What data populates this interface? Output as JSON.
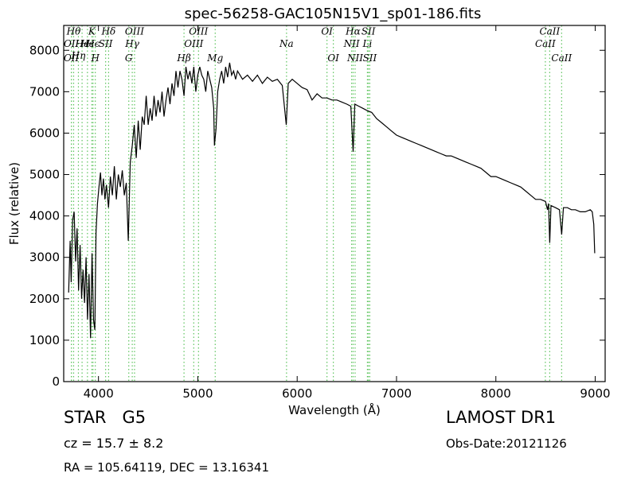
{
  "chart_data": {
    "type": "line",
    "title": "spec-56258-GAC105N15V1_sp01-186.fits",
    "xlabel": "Wavelength (Å)",
    "ylabel": "Flux (relative)",
    "xlim": [
      3650,
      9100
    ],
    "ylim": [
      0,
      8600
    ],
    "xticks": [
      4000,
      5000,
      6000,
      7000,
      8000,
      9000
    ],
    "yticks": [
      0,
      1000,
      2000,
      3000,
      4000,
      5000,
      6000,
      7000,
      8000
    ],
    "grid": false,
    "line_color": "#000000",
    "marker_color": "#5ec45e",
    "spectrum": [
      [
        3700,
        2150
      ],
      [
        3715,
        3400
      ],
      [
        3725,
        2400
      ],
      [
        3740,
        3900
      ],
      [
        3755,
        4100
      ],
      [
        3770,
        2900
      ],
      [
        3785,
        3700
      ],
      [
        3800,
        2200
      ],
      [
        3815,
        3300
      ],
      [
        3830,
        2000
      ],
      [
        3845,
        2700
      ],
      [
        3860,
        1900
      ],
      [
        3875,
        3000
      ],
      [
        3890,
        1500
      ],
      [
        3905,
        2600
      ],
      [
        3920,
        1050
      ],
      [
        3935,
        3100
      ],
      [
        3950,
        1500
      ],
      [
        3963,
        1250
      ],
      [
        3975,
        3600
      ],
      [
        3990,
        4300
      ],
      [
        4005,
        4700
      ],
      [
        4020,
        5050
      ],
      [
        4035,
        4500
      ],
      [
        4050,
        4900
      ],
      [
        4065,
        4400
      ],
      [
        4080,
        4750
      ],
      [
        4101,
        4200
      ],
      [
        4120,
        4950
      ],
      [
        4140,
        4500
      ],
      [
        4160,
        5200
      ],
      [
        4180,
        4400
      ],
      [
        4200,
        5000
      ],
      [
        4220,
        4700
      ],
      [
        4240,
        5100
      ],
      [
        4260,
        4500
      ],
      [
        4280,
        4800
      ],
      [
        4300,
        3400
      ],
      [
        4320,
        5300
      ],
      [
        4340,
        5700
      ],
      [
        4360,
        6200
      ],
      [
        4380,
        5400
      ],
      [
        4400,
        6300
      ],
      [
        4420,
        5600
      ],
      [
        4440,
        6400
      ],
      [
        4460,
        6200
      ],
      [
        4480,
        6900
      ],
      [
        4500,
        6200
      ],
      [
        4520,
        6600
      ],
      [
        4540,
        6300
      ],
      [
        4560,
        6900
      ],
      [
        4580,
        6400
      ],
      [
        4600,
        6800
      ],
      [
        4620,
        6500
      ],
      [
        4640,
        7000
      ],
      [
        4660,
        6400
      ],
      [
        4680,
        6800
      ],
      [
        4700,
        7100
      ],
      [
        4720,
        6700
      ],
      [
        4740,
        7200
      ],
      [
        4760,
        6900
      ],
      [
        4780,
        7500
      ],
      [
        4800,
        7100
      ],
      [
        4820,
        7500
      ],
      [
        4840,
        7300
      ],
      [
        4861,
        6900
      ],
      [
        4880,
        7600
      ],
      [
        4900,
        7300
      ],
      [
        4920,
        7500
      ],
      [
        4940,
        7200
      ],
      [
        4960,
        7600
      ],
      [
        4980,
        7000
      ],
      [
        5000,
        7400
      ],
      [
        5020,
        7600
      ],
      [
        5040,
        7400
      ],
      [
        5060,
        7300
      ],
      [
        5080,
        7000
      ],
      [
        5100,
        7500
      ],
      [
        5120,
        7300
      ],
      [
        5140,
        7100
      ],
      [
        5160,
        6600
      ],
      [
        5167,
        5700
      ],
      [
        5183,
        6100
      ],
      [
        5200,
        7000
      ],
      [
        5220,
        7300
      ],
      [
        5240,
        7500
      ],
      [
        5260,
        7200
      ],
      [
        5280,
        7600
      ],
      [
        5300,
        7350
      ],
      [
        5320,
        7700
      ],
      [
        5340,
        7400
      ],
      [
        5360,
        7500
      ],
      [
        5380,
        7300
      ],
      [
        5400,
        7500
      ],
      [
        5450,
        7300
      ],
      [
        5500,
        7400
      ],
      [
        5550,
        7250
      ],
      [
        5600,
        7400
      ],
      [
        5650,
        7200
      ],
      [
        5700,
        7350
      ],
      [
        5750,
        7250
      ],
      [
        5800,
        7300
      ],
      [
        5850,
        7150
      ],
      [
        5890,
        6200
      ],
      [
        5910,
        7200
      ],
      [
        5950,
        7300
      ],
      [
        6000,
        7200
      ],
      [
        6050,
        7100
      ],
      [
        6100,
        7050
      ],
      [
        6150,
        6800
      ],
      [
        6200,
        6950
      ],
      [
        6250,
        6850
      ],
      [
        6300,
        6850
      ],
      [
        6350,
        6800
      ],
      [
        6400,
        6800
      ],
      [
        6450,
        6750
      ],
      [
        6500,
        6700
      ],
      [
        6540,
        6650
      ],
      [
        6563,
        5550
      ],
      [
        6580,
        6700
      ],
      [
        6620,
        6650
      ],
      [
        6660,
        6600
      ],
      [
        6700,
        6550
      ],
      [
        6750,
        6500
      ],
      [
        6800,
        6350
      ],
      [
        6850,
        6250
      ],
      [
        6900,
        6150
      ],
      [
        6950,
        6050
      ],
      [
        7000,
        5950
      ],
      [
        7050,
        5900
      ],
      [
        7100,
        5850
      ],
      [
        7150,
        5800
      ],
      [
        7200,
        5750
      ],
      [
        7250,
        5700
      ],
      [
        7300,
        5650
      ],
      [
        7350,
        5600
      ],
      [
        7400,
        5550
      ],
      [
        7450,
        5500
      ],
      [
        7500,
        5450
      ],
      [
        7550,
        5450
      ],
      [
        7600,
        5400
      ],
      [
        7650,
        5350
      ],
      [
        7700,
        5300
      ],
      [
        7750,
        5250
      ],
      [
        7800,
        5200
      ],
      [
        7850,
        5150
      ],
      [
        7900,
        5050
      ],
      [
        7950,
        4950
      ],
      [
        8000,
        4950
      ],
      [
        8050,
        4900
      ],
      [
        8100,
        4850
      ],
      [
        8150,
        4800
      ],
      [
        8200,
        4750
      ],
      [
        8250,
        4700
      ],
      [
        8300,
        4600
      ],
      [
        8350,
        4500
      ],
      [
        8400,
        4400
      ],
      [
        8450,
        4400
      ],
      [
        8500,
        4350
      ],
      [
        8520,
        4150
      ],
      [
        8530,
        4300
      ],
      [
        8542,
        3350
      ],
      [
        8555,
        4250
      ],
      [
        8600,
        4200
      ],
      [
        8640,
        4150
      ],
      [
        8662,
        3550
      ],
      [
        8680,
        4200
      ],
      [
        8720,
        4200
      ],
      [
        8760,
        4150
      ],
      [
        8800,
        4150
      ],
      [
        8850,
        4100
      ],
      [
        8900,
        4100
      ],
      [
        8950,
        4150
      ],
      [
        8970,
        4100
      ],
      [
        8985,
        3800
      ],
      [
        8995,
        3100
      ]
    ],
    "markers": [
      {
        "x": 3727,
        "label": "OII",
        "y": 8180
      },
      {
        "x": 3727,
        "label": "OII",
        "y": 7830
      },
      {
        "x": 3750,
        "label": "Hθ",
        "y": 8480
      },
      {
        "x": 3798,
        "label": "Hη",
        "y": 7890
      },
      {
        "x": 3835,
        "label": "Hϵ",
        "y": 8180
      },
      {
        "x": 3889,
        "label": "Hϵ",
        "y": 8180
      },
      {
        "x": 3933,
        "label": "K",
        "y": 8480
      },
      {
        "x": 3945,
        "label": "Hϵ",
        "y": 8180
      },
      {
        "x": 3968,
        "label": "H",
        "y": 7830
      },
      {
        "x": 4072,
        "label": "SII",
        "y": 8180
      },
      {
        "x": 4102,
        "label": "Hδ",
        "y": 8480
      },
      {
        "x": 4305,
        "label": "G",
        "y": 7830
      },
      {
        "x": 4340,
        "label": "Hγ",
        "y": 8180
      },
      {
        "x": 4363,
        "label": "OIII",
        "y": 8480
      },
      {
        "x": 4861,
        "label": "Hβ",
        "y": 7830
      },
      {
        "x": 4959,
        "label": "OIII",
        "y": 8180
      },
      {
        "x": 5007,
        "label": "OIII",
        "y": 8480
      },
      {
        "x": 5175,
        "label": "Mg",
        "y": 7830
      },
      {
        "x": 5893,
        "label": "Na",
        "y": 8180
      },
      {
        "x": 6300,
        "label": "OI",
        "y": 8480
      },
      {
        "x": 6364,
        "label": "OI",
        "y": 7830
      },
      {
        "x": 6548,
        "label": "NII",
        "y": 8180
      },
      {
        "x": 6563,
        "label": "Hα",
        "y": 8480
      },
      {
        "x": 6583,
        "label": "NII",
        "y": 7830
      },
      {
        "x": 6707,
        "label": "Li",
        "y": 8180
      },
      {
        "x": 6717,
        "label": "SII",
        "y": 8480
      },
      {
        "x": 6731,
        "label": "SII",
        "y": 7830
      },
      {
        "x": 8498,
        "label": "CaII",
        "y": 8180
      },
      {
        "x": 8542,
        "label": "CaII",
        "y": 8480
      },
      {
        "x": 8662,
        "label": "CaII",
        "y": 7830
      }
    ]
  },
  "footer": {
    "object_class": "STAR   G5",
    "survey": "LAMOST DR1",
    "cz": "cz = 15.7 ± 8.2",
    "obs_date": "Obs-Date:20121126",
    "radec": "RA = 105.64119, DEC = 13.16341"
  }
}
